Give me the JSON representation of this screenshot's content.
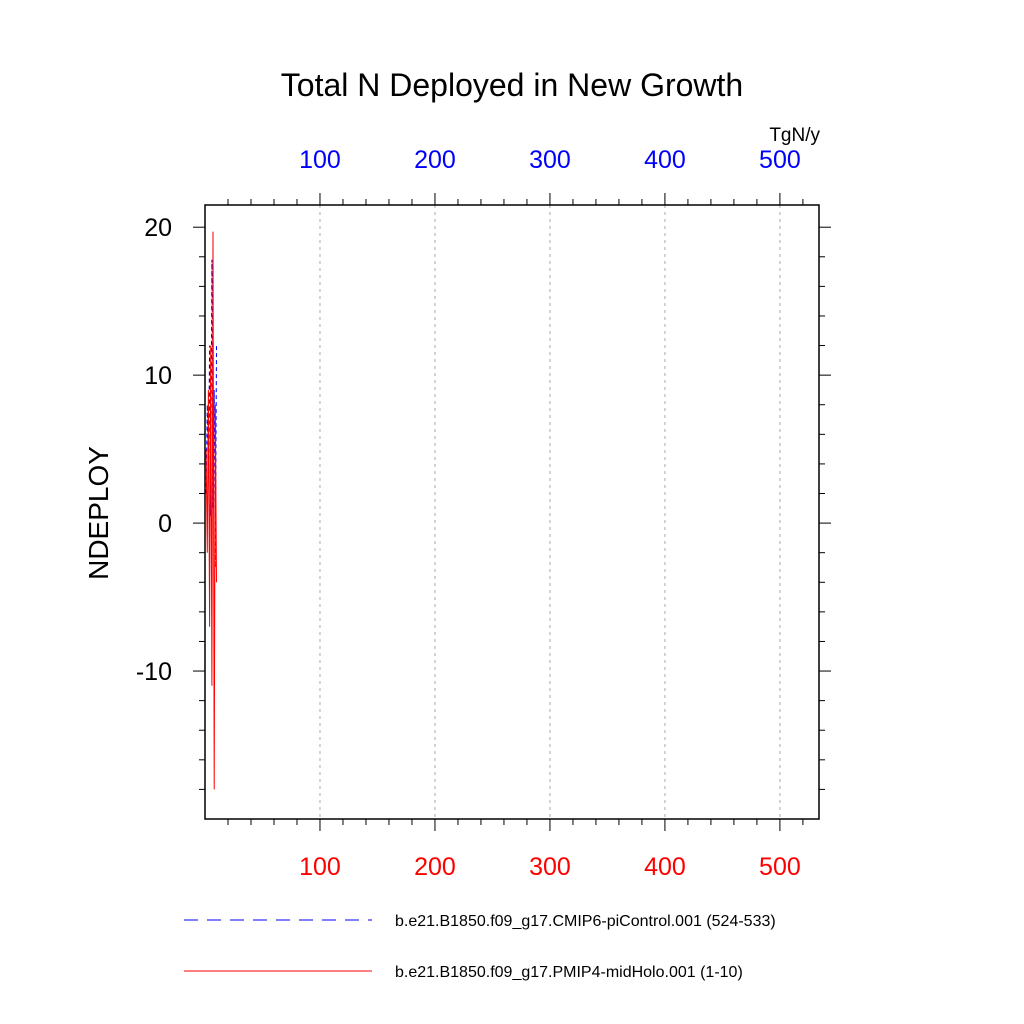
{
  "chart_data": {
    "type": "line",
    "title": "Total N Deployed in New Growth",
    "ylabel": "NDEPLOY",
    "units": "TgN/y",
    "xlim": [
      0,
      534
    ],
    "ylim": [
      -20,
      21.5
    ],
    "x_ticks": [
      100,
      200,
      300,
      400,
      500
    ],
    "x_tick_labels": [
      "100",
      "200",
      "300",
      "400",
      "500"
    ],
    "y_ticks": [
      -10,
      0,
      10,
      20
    ],
    "y_tick_labels": [
      "-10",
      "0",
      "10",
      "20"
    ],
    "colors": {
      "top_axis_labels": "#0000ff",
      "bottom_axis_labels": "#ff0000",
      "grid": "#aaaaaa"
    },
    "grid": true,
    "legend_position": "bottom",
    "series": [
      {
        "name": "b.e21.B1850.f09_g17.CMIP6-piControl.001 (524-533)",
        "color": "#0000ff",
        "dash": "dashed",
        "x": [
          1,
          2,
          3,
          4,
          5,
          6,
          7,
          8,
          9,
          10
        ],
        "y": [
          2,
          8,
          3,
          12,
          0.5,
          17.8,
          1,
          9,
          -3,
          12
        ]
      },
      {
        "name": "b.e21.B1850.f09_g17.PMIP4-midHolo.001 (1-10)",
        "color": "#ff0000",
        "dash": "solid",
        "x": [
          1,
          2,
          3,
          4,
          5,
          6,
          7,
          8,
          9,
          10
        ],
        "y": [
          5,
          -2,
          9,
          -7,
          12,
          -11,
          19.7,
          -18,
          8,
          -4
        ]
      }
    ]
  }
}
